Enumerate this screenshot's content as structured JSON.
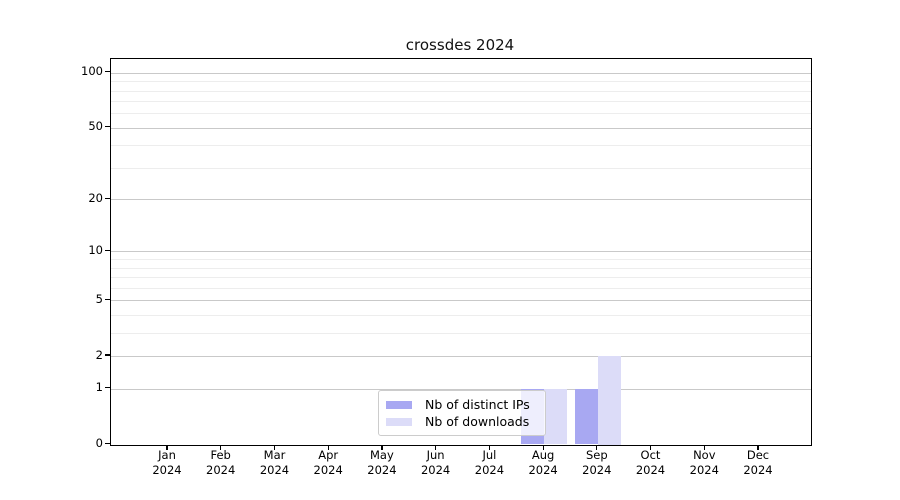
{
  "chart_data": {
    "type": "bar",
    "title": "crossdes 2024",
    "x_categories": [
      "Jan",
      "Feb",
      "Mar",
      "Apr",
      "May",
      "Jun",
      "Jul",
      "Aug",
      "Sep",
      "Oct",
      "Nov",
      "Dec"
    ],
    "x_year": "2024",
    "series": [
      {
        "name": "Nb of distinct IPs",
        "color": "#a8a8f2",
        "values": [
          0,
          0,
          0,
          0,
          0,
          0,
          0,
          1,
          1,
          0,
          0,
          0
        ]
      },
      {
        "name": "Nb of downloads",
        "color": "#dcdcf8",
        "values": [
          0,
          0,
          0,
          0,
          0,
          0,
          0,
          1,
          2,
          0,
          0,
          0
        ]
      }
    ],
    "yscale": "log1p",
    "yticks": [
      0,
      1,
      2,
      5,
      10,
      20,
      50,
      100
    ],
    "ytick_labels": [
      "0",
      "1",
      "2",
      "5",
      "10",
      "20",
      "50",
      "100"
    ],
    "yminor_gridlines": [
      3,
      4,
      6,
      7,
      8,
      9,
      30,
      40,
      60,
      70,
      80,
      90
    ],
    "ylim": [
      0,
      122
    ],
    "grid": "horizontal",
    "legend_position": "bottom-center"
  },
  "colors": {
    "background": "#ffffff",
    "bar_distinct_ips": "#a8a8f2",
    "bar_downloads": "#dcdcf8",
    "major_grid": "#c9c9c9",
    "minor_grid": "#ededed",
    "axis": "#000000",
    "legend_border": "#cccccc",
    "text": "#000000"
  }
}
